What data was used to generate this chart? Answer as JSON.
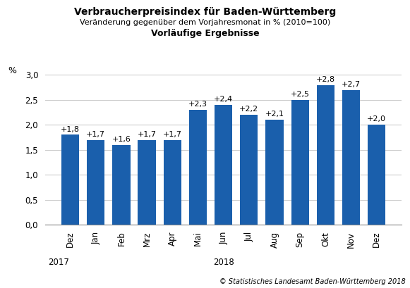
{
  "title_line1": "Verbraucherpreisindex für Baden-Württemberg",
  "title_line2": "Veränderung gegenüber dem Vorjahresmonat in % (2010=100)",
  "title_line3": "Vorläufige Ergebnisse",
  "ylabel": "%",
  "categories": [
    "Dez",
    "Jan",
    "Feb",
    "Mrz",
    "Apr",
    "Mai",
    "Jun",
    "Jul",
    "Aug",
    "Sep",
    "Okt",
    "Nov",
    "Dez"
  ],
  "values": [
    1.8,
    1.7,
    1.6,
    1.7,
    1.7,
    2.3,
    2.4,
    2.2,
    2.1,
    2.5,
    2.8,
    2.7,
    2.0
  ],
  "labels": [
    "+1,8",
    "+1,7",
    "+1,6",
    "+1,7",
    "+1,7",
    "+2,3",
    "+2,4",
    "+2,2",
    "+2,1",
    "+2,5",
    "+2,8",
    "+2,7",
    "+2,0"
  ],
  "bar_color": "#1a5fac",
  "ylim": [
    0.0,
    3.0
  ],
  "yticks": [
    0.0,
    0.5,
    1.0,
    1.5,
    2.0,
    2.5,
    3.0
  ],
  "ytick_labels": [
    "0,0",
    "0,5",
    "1,0",
    "1,5",
    "2,0",
    "2,5",
    "3,0"
  ],
  "year_label_2017_idx": 0,
  "year_label_2018_idx": 6,
  "footer": "© Statistisches Landesamt Baden-Württemberg 2018",
  "background_color": "#ffffff",
  "grid_color": "#cccccc",
  "title1_fontsize": 10,
  "title2_fontsize": 8,
  "title3_fontsize": 9,
  "bar_label_fontsize": 8,
  "tick_fontsize": 8.5,
  "ytick_fontsize": 8.5
}
